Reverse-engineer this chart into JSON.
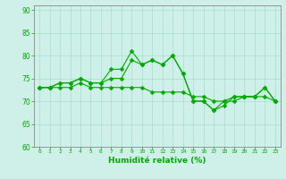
{
  "x": [
    0,
    1,
    2,
    3,
    4,
    5,
    6,
    7,
    8,
    9,
    10,
    11,
    12,
    13,
    14,
    15,
    16,
    17,
    18,
    19,
    20,
    21,
    22,
    23
  ],
  "line1": [
    73,
    73,
    74,
    74,
    75,
    74,
    74,
    77,
    77,
    81,
    78,
    79,
    78,
    80,
    76,
    70,
    70,
    68,
    70,
    71,
    71,
    71,
    73,
    70
  ],
  "line2": [
    73,
    73,
    74,
    74,
    75,
    74,
    74,
    75,
    75,
    79,
    78,
    79,
    78,
    80,
    76,
    70,
    70,
    68,
    69,
    71,
    71,
    71,
    73,
    70
  ],
  "line3": [
    73,
    73,
    73,
    73,
    74,
    73,
    73,
    73,
    73,
    73,
    73,
    72,
    72,
    72,
    72,
    71,
    71,
    70,
    70,
    70,
    71,
    71,
    71,
    70
  ],
  "xlabel": "Humidité relative (%)",
  "ylim": [
    60,
    91
  ],
  "yticks": [
    60,
    65,
    70,
    75,
    80,
    85,
    90
  ],
  "xlim": [
    -0.5,
    23.5
  ],
  "bg_color": "#cef0e8",
  "grid_color": "#aaddcc",
  "line_color": "#00aa00",
  "markersize": 2.5
}
